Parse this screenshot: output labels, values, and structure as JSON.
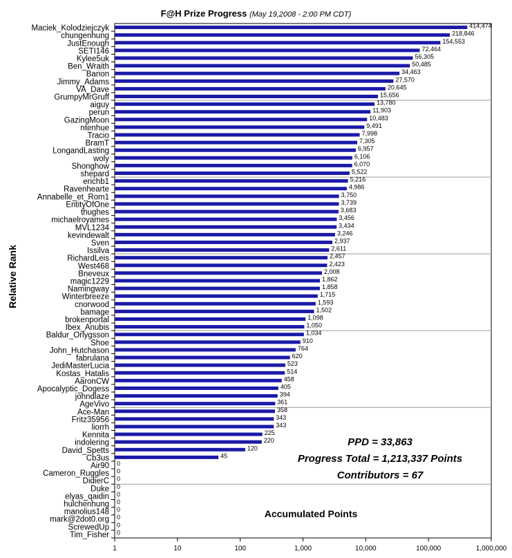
{
  "chart_data": {
    "type": "bar",
    "orientation": "horizontal",
    "title": "F@H Prize Progress",
    "subtitle": "(May 19,2008 -  2:00 PM CDT)",
    "xlabel": "Accumulated Points",
    "ylabel": "Relative Rank",
    "x_scale": "log",
    "xlim": [
      1,
      1000000
    ],
    "x_ticks": [
      "1",
      "10",
      "100",
      "1,000",
      "10,000",
      "100,000",
      "1,000,000"
    ],
    "bar_color": "#1a1aa8",
    "grid": "horizontal lines every 10 ranks",
    "categories": [
      "Maciek_Kolodziejczyk",
      "chungenhung",
      "JustEnough",
      "SETI146",
      "Kylee5uk",
      "Ben_Wraith",
      "Barion",
      "Jimmy_Adams",
      "VA_Dave",
      "GrumpyMrGruff",
      "aiguy",
      "perun",
      "GazingMoon",
      "ntenhue",
      "Tracio",
      "BramT",
      "LongandLasting",
      "woly",
      "Shonghow",
      "shepard",
      "erichb1",
      "Ravenhearte",
      "Annabelle_et_Rom1",
      "EntityOfOne",
      "thughes",
      "michaelroyames",
      "MVL1234",
      "kevindewalt",
      "Sven",
      "Issilva",
      "RichardLeis",
      "West468",
      "Bneveux",
      "magic1229",
      "Namingway",
      "Winterbreeze",
      "cnorwood",
      "bamage",
      "brokenportal",
      "Ibex_Anubis",
      "Baldur_Orlygsson",
      "Shoe",
      "John_Hutchason",
      "fabrulana",
      "JediMasterLucia",
      "Kostas_Hatalis",
      "AaronCW",
      "Apocalyptic_Dogess",
      "johndlaze",
      "AgeVivo",
      "Ace-Man",
      "Fritz35956",
      "liorrh",
      "Kennita",
      "indolering",
      "David_Spetts",
      "Cb3us",
      "Air90",
      "Cameron_Ruggles",
      "DidierC",
      "Duke",
      "elyas_qaidin",
      "hulchenhung",
      "manolius148",
      "mark@2dot0.org",
      "ScrewedUp",
      "Tim_Fisher"
    ],
    "values": [
      414474,
      218846,
      154553,
      72464,
      56305,
      50485,
      34463,
      27570,
      20645,
      15656,
      13780,
      11903,
      10483,
      9491,
      7998,
      7305,
      6957,
      6106,
      6070,
      5522,
      5216,
      4986,
      3750,
      3739,
      3683,
      3456,
      3434,
      3246,
      2937,
      2611,
      2457,
      2423,
      2008,
      1862,
      1858,
      1715,
      1593,
      1502,
      1098,
      1050,
      1034,
      910,
      764,
      620,
      523,
      514,
      458,
      405,
      394,
      361,
      358,
      343,
      343,
      225,
      220,
      120,
      45,
      0,
      0,
      0,
      0,
      0,
      0,
      0,
      0,
      0,
      0
    ],
    "value_labels": [
      "414,474",
      "218,846",
      "154,553",
      "72,464",
      "56,305",
      "50,485",
      "34,463",
      "27,570",
      "20,645",
      "15,656",
      "13,780",
      "11,903",
      "10,483",
      "9,491",
      "7,998",
      "7,305",
      "6,957",
      "6,106",
      "6,070",
      "5,522",
      "5,216",
      "4,986",
      "3,750",
      "3,739",
      "3,683",
      "3,456",
      "3,434",
      "3,246",
      "2,937",
      "2,611",
      "2,457",
      "2,423",
      "2,008",
      "1,862",
      "1,858",
      "1,715",
      "1,593",
      "1,502",
      "1,098",
      "1,050",
      "1,034",
      "910",
      "764",
      "620",
      "523",
      "514",
      "458",
      "405",
      "394",
      "361",
      "358",
      "343",
      "343",
      "225",
      "220",
      "120",
      "45",
      "0",
      "0",
      "0",
      "0",
      "0",
      "0",
      "0",
      "0",
      "0",
      "0"
    ]
  },
  "stats": {
    "ppd": "PPD = 33,863",
    "progress": "Progress Total = 1,213,337 Points",
    "contributors": "Contributors = 67"
  }
}
